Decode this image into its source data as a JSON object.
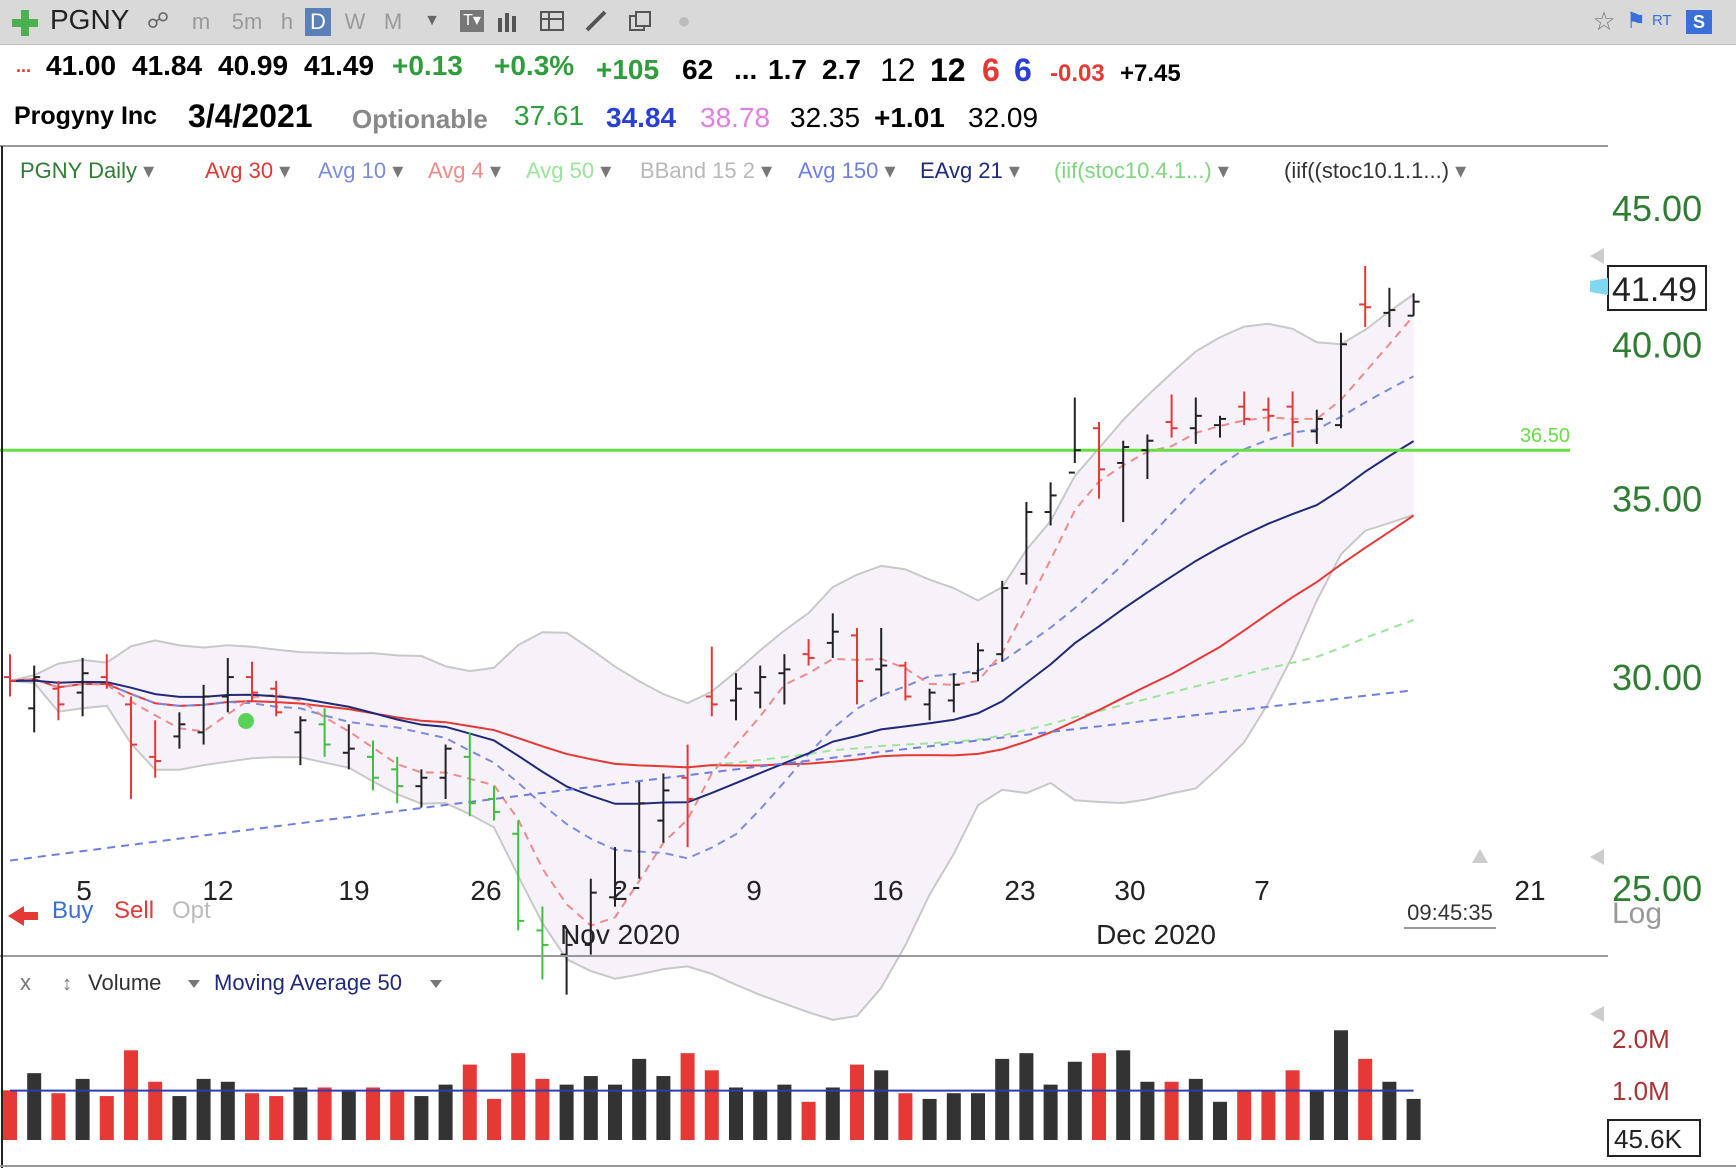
{
  "toolbar": {
    "symbol": "PGNY",
    "intervals": [
      "m",
      "5m",
      "h",
      "D",
      "W",
      "M"
    ],
    "active_interval": "D",
    "right_badges": [
      "RT",
      "S"
    ]
  },
  "quote_row1": {
    "open": "41.00",
    "high": "41.84",
    "low": "40.99",
    "close": "41.49",
    "change": "+0.13",
    "change_pct": "+0.3%",
    "val_a": "+105",
    "val_b": "62",
    "ellipsis": "...",
    "val_c": "1.7",
    "val_d": "2.7",
    "val_e": "12",
    "val_f": "12",
    "val_g": "6",
    "val_h": "6",
    "val_i": "-0.03",
    "val_j": "+7.45"
  },
  "quote_row2": {
    "company": "Progyny Inc",
    "date": "3/4/2021",
    "optionable": "Optionable",
    "v1": "37.61",
    "v2": "34.84",
    "v3": "38.78",
    "v4": "32.35",
    "v5": "+1.01",
    "v6": "32.09"
  },
  "indicators": [
    {
      "label": "PGNY Daily",
      "color": "#2e7d32"
    },
    {
      "label": "Avg 30",
      "color": "#e53935"
    },
    {
      "label": "Avg 10",
      "color": "#7b8ce0"
    },
    {
      "label": "Avg 4",
      "color": "#f08a8a"
    },
    {
      "label": "Avg 50",
      "color": "#9be59b"
    },
    {
      "label": "BBand 15 2",
      "color": "#b8b8b8"
    },
    {
      "label": "Avg 150",
      "color": "#6f7fe0"
    },
    {
      "label": "EAvg 21",
      "color": "#1f2a7a"
    },
    {
      "label": "(iif(stoc10.4.1...)",
      "color": "#7ed67e"
    },
    {
      "label": "(iif((stoc10.1.1...)",
      "color": "#333333"
    }
  ],
  "chart_data": {
    "type": "ohlc",
    "price_axis": {
      "ticks": [
        "45.00",
        "40.00",
        "35.00",
        "30.00",
        "25.00"
      ],
      "scale": "log",
      "scale_label": "Log"
    },
    "last_price_label": "41.49",
    "horizontal_line": {
      "value": 36.5,
      "label": "36.50",
      "color": "#66dd44"
    },
    "x_tick_labels": [
      "5",
      "12",
      "19",
      "26",
      "2",
      "9",
      "16",
      "23",
      "30",
      "7",
      "21"
    ],
    "month_labels": [
      "Nov 2020",
      "Dec 2020"
    ],
    "time_label": "09:45:35",
    "trade_buttons": [
      "Buy",
      "Sell",
      "Opt"
    ],
    "bars": [
      {
        "o": 30.0,
        "h": 30.6,
        "l": 29.5,
        "c": 29.9
      },
      {
        "o": 29.2,
        "h": 30.3,
        "l": 28.6,
        "c": 30.0
      },
      {
        "o": 29.7,
        "h": 29.9,
        "l": 28.9,
        "c": 29.3
      },
      {
        "o": 29.6,
        "h": 30.5,
        "l": 29.0,
        "c": 30.1
      },
      {
        "o": 30.0,
        "h": 30.6,
        "l": 29.7,
        "c": 29.8
      },
      {
        "o": 29.3,
        "h": 29.5,
        "l": 27.0,
        "c": 28.3
      },
      {
        "o": 28.0,
        "h": 28.9,
        "l": 27.5,
        "c": 27.9
      },
      {
        "o": 28.5,
        "h": 29.1,
        "l": 28.2,
        "c": 28.8
      },
      {
        "o": 28.6,
        "h": 29.8,
        "l": 28.3,
        "c": 29.5
      },
      {
        "o": 29.5,
        "h": 30.5,
        "l": 29.1,
        "c": 30.0
      },
      {
        "o": 30.0,
        "h": 30.4,
        "l": 29.4,
        "c": 29.6
      },
      {
        "o": 29.7,
        "h": 29.9,
        "l": 29.0,
        "c": 29.1
      },
      {
        "o": 28.6,
        "h": 29.0,
        "l": 27.8,
        "c": 28.9
      },
      {
        "o": 28.8,
        "h": 29.2,
        "l": 28.0,
        "c": 28.3
      },
      {
        "o": 28.1,
        "h": 28.8,
        "l": 27.7,
        "c": 28.2
      },
      {
        "o": 28.0,
        "h": 28.4,
        "l": 27.2,
        "c": 27.5
      },
      {
        "o": 27.7,
        "h": 28.0,
        "l": 26.9,
        "c": 27.3
      },
      {
        "o": 27.3,
        "h": 27.7,
        "l": 26.8,
        "c": 27.5
      },
      {
        "o": 27.5,
        "h": 28.3,
        "l": 27.0,
        "c": 28.2
      },
      {
        "o": 28.0,
        "h": 28.6,
        "l": 26.6,
        "c": 26.9
      },
      {
        "o": 27.0,
        "h": 27.3,
        "l": 26.5,
        "c": 26.7
      },
      {
        "o": 26.2,
        "h": 26.5,
        "l": 24.1,
        "c": 24.3
      },
      {
        "o": 24.1,
        "h": 24.6,
        "l": 23.1,
        "c": 23.8
      },
      {
        "o": 23.6,
        "h": 24.1,
        "l": 22.8,
        "c": 23.8
      },
      {
        "o": 23.8,
        "h": 25.2,
        "l": 23.6,
        "c": 24.9
      },
      {
        "o": 24.8,
        "h": 25.9,
        "l": 24.6,
        "c": 25.0
      },
      {
        "o": 25.0,
        "h": 27.4,
        "l": 25.2,
        "c": 26.9
      },
      {
        "o": 26.5,
        "h": 27.6,
        "l": 26.0,
        "c": 27.2
      },
      {
        "o": 27.5,
        "h": 28.3,
        "l": 25.9,
        "c": 27.0
      },
      {
        "o": 29.5,
        "h": 30.8,
        "l": 29.0,
        "c": 29.3
      },
      {
        "o": 29.4,
        "h": 30.1,
        "l": 28.9,
        "c": 29.7
      },
      {
        "o": 29.6,
        "h": 30.3,
        "l": 29.2,
        "c": 30.0
      },
      {
        "o": 30.1,
        "h": 30.6,
        "l": 29.3,
        "c": 30.2
      },
      {
        "o": 30.6,
        "h": 31.0,
        "l": 30.3,
        "c": 30.5
      },
      {
        "o": 30.9,
        "h": 31.7,
        "l": 30.5,
        "c": 31.2
      },
      {
        "o": 31.1,
        "h": 31.3,
        "l": 29.3,
        "c": 29.9
      },
      {
        "o": 30.2,
        "h": 31.3,
        "l": 29.5,
        "c": 30.3
      },
      {
        "o": 30.3,
        "h": 30.4,
        "l": 29.4,
        "c": 29.5
      },
      {
        "o": 29.3,
        "h": 29.7,
        "l": 28.9,
        "c": 29.6
      },
      {
        "o": 29.4,
        "h": 30.1,
        "l": 29.1,
        "c": 29.8
      },
      {
        "o": 30.1,
        "h": 30.9,
        "l": 29.9,
        "c": 30.7
      },
      {
        "o": 30.6,
        "h": 32.6,
        "l": 30.4,
        "c": 32.4
      },
      {
        "o": 32.8,
        "h": 34.9,
        "l": 32.5,
        "c": 34.6
      },
      {
        "o": 34.6,
        "h": 35.5,
        "l": 34.2,
        "c": 35.1
      },
      {
        "o": 35.8,
        "h": 38.2,
        "l": 36.1,
        "c": 36.5
      },
      {
        "o": 37.2,
        "h": 37.4,
        "l": 35.0,
        "c": 35.9
      },
      {
        "o": 36.1,
        "h": 36.8,
        "l": 34.3,
        "c": 36.6
      },
      {
        "o": 36.5,
        "h": 37.0,
        "l": 35.6,
        "c": 36.8
      },
      {
        "o": 37.4,
        "h": 38.3,
        "l": 36.9,
        "c": 37.2
      },
      {
        "o": 37.2,
        "h": 38.2,
        "l": 36.7,
        "c": 37.6
      },
      {
        "o": 37.3,
        "h": 37.6,
        "l": 36.9,
        "c": 37.5
      },
      {
        "o": 37.9,
        "h": 38.4,
        "l": 37.3,
        "c": 37.5
      },
      {
        "o": 37.8,
        "h": 38.2,
        "l": 37.1,
        "c": 37.6
      },
      {
        "o": 37.9,
        "h": 38.4,
        "l": 36.6,
        "c": 37.4
      },
      {
        "o": 37.1,
        "h": 37.8,
        "l": 36.7,
        "c": 37.5
      },
      {
        "o": 37.3,
        "h": 40.4,
        "l": 37.2,
        "c": 40.0
      },
      {
        "o": 41.4,
        "h": 42.8,
        "l": 40.6,
        "c": 41.3
      },
      {
        "o": 41.1,
        "h": 42.0,
        "l": 40.6,
        "c": 41.2
      },
      {
        "o": 41.0,
        "h": 41.8,
        "l": 41.0,
        "c": 41.5
      }
    ],
    "volume_axis": {
      "ticks": [
        "2.0M",
        "1.0M"
      ],
      "last_label": "45.6K"
    },
    "volume_panel": {
      "labels": [
        "Volume",
        "Moving Average 50"
      ]
    }
  }
}
